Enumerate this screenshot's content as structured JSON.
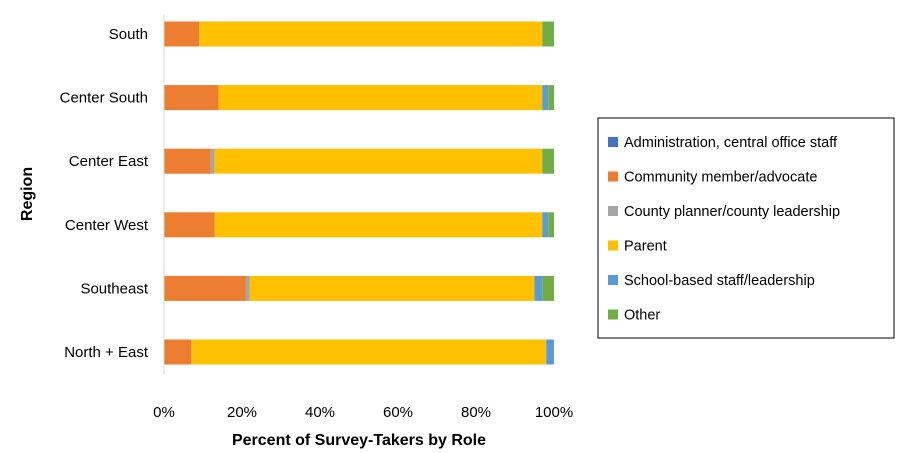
{
  "chart_data": {
    "type": "bar",
    "orientation": "horizontal",
    "stacked": true,
    "xlabel": "Percent of Survey-Takers by Role",
    "ylabel": "Region",
    "xlim": [
      0,
      100
    ],
    "x_ticks": [
      "0%",
      "20%",
      "40%",
      "60%",
      "80%",
      "100%"
    ],
    "grid": false,
    "legend_position": "right",
    "categories": [
      "South",
      "Center South",
      "Center East",
      "Center West",
      "Southeast",
      "North + East"
    ],
    "series": [
      {
        "name": "Administration, central office staff",
        "color": "#4472C4",
        "values": [
          0,
          0,
          0,
          0,
          0,
          0
        ]
      },
      {
        "name": "Community member/advocate",
        "color": "#ED7D31",
        "values": [
          9,
          14,
          12,
          13,
          21,
          7
        ]
      },
      {
        "name": "County planner/county leadership",
        "color": "#A5A5A5",
        "values": [
          0,
          0,
          1,
          0,
          1,
          0
        ]
      },
      {
        "name": "Parent",
        "color": "#FFC000",
        "values": [
          88,
          83,
          84,
          84,
          73,
          91
        ]
      },
      {
        "name": "School-based staff/leadership",
        "color": "#5B9BD5",
        "values": [
          0,
          1.5,
          0,
          1.5,
          2,
          2
        ]
      },
      {
        "name": "Other",
        "color": "#70AD47",
        "values": [
          3,
          1.5,
          3,
          1.5,
          3,
          0
        ]
      }
    ]
  }
}
